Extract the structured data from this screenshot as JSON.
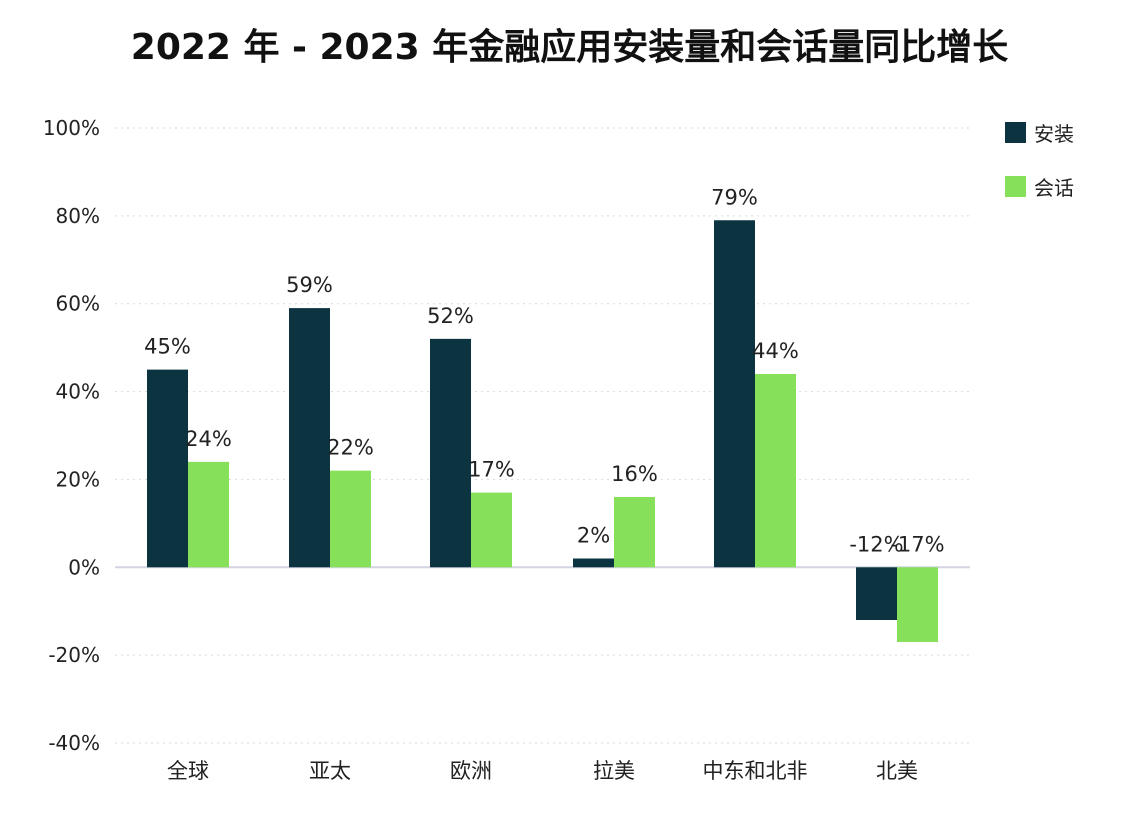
{
  "chart_data": {
    "type": "bar",
    "title": "2022 年 - 2023 年金融应用安装量和会话量同比增长",
    "categories": [
      "全球",
      "亚太",
      "欧洲",
      "拉美",
      "中东和北非",
      "北美"
    ],
    "series": [
      {
        "name": "安装",
        "color": "#0b3440",
        "values": [
          45,
          59,
          52,
          2,
          79,
          -12
        ],
        "labels": [
          "45%",
          "59%",
          "52%",
          "2%",
          "79%",
          "-12%"
        ]
      },
      {
        "name": "会话",
        "color": "#86e05a",
        "values": [
          24,
          22,
          17,
          16,
          44,
          -17
        ],
        "labels": [
          "24%",
          "22%",
          "17%",
          "16%",
          "44%",
          "-17%"
        ]
      }
    ],
    "yticks": [
      100,
      80,
      60,
      40,
      20,
      0,
      -20,
      -40
    ],
    "ytick_labels": [
      "100%",
      "80%",
      "60%",
      "40%",
      "20%",
      "0%",
      "-20%",
      "-40%"
    ],
    "ylim": [
      -40,
      100
    ],
    "xlabel": "",
    "ylabel": "",
    "grid": true,
    "legend_position": "top-right"
  }
}
